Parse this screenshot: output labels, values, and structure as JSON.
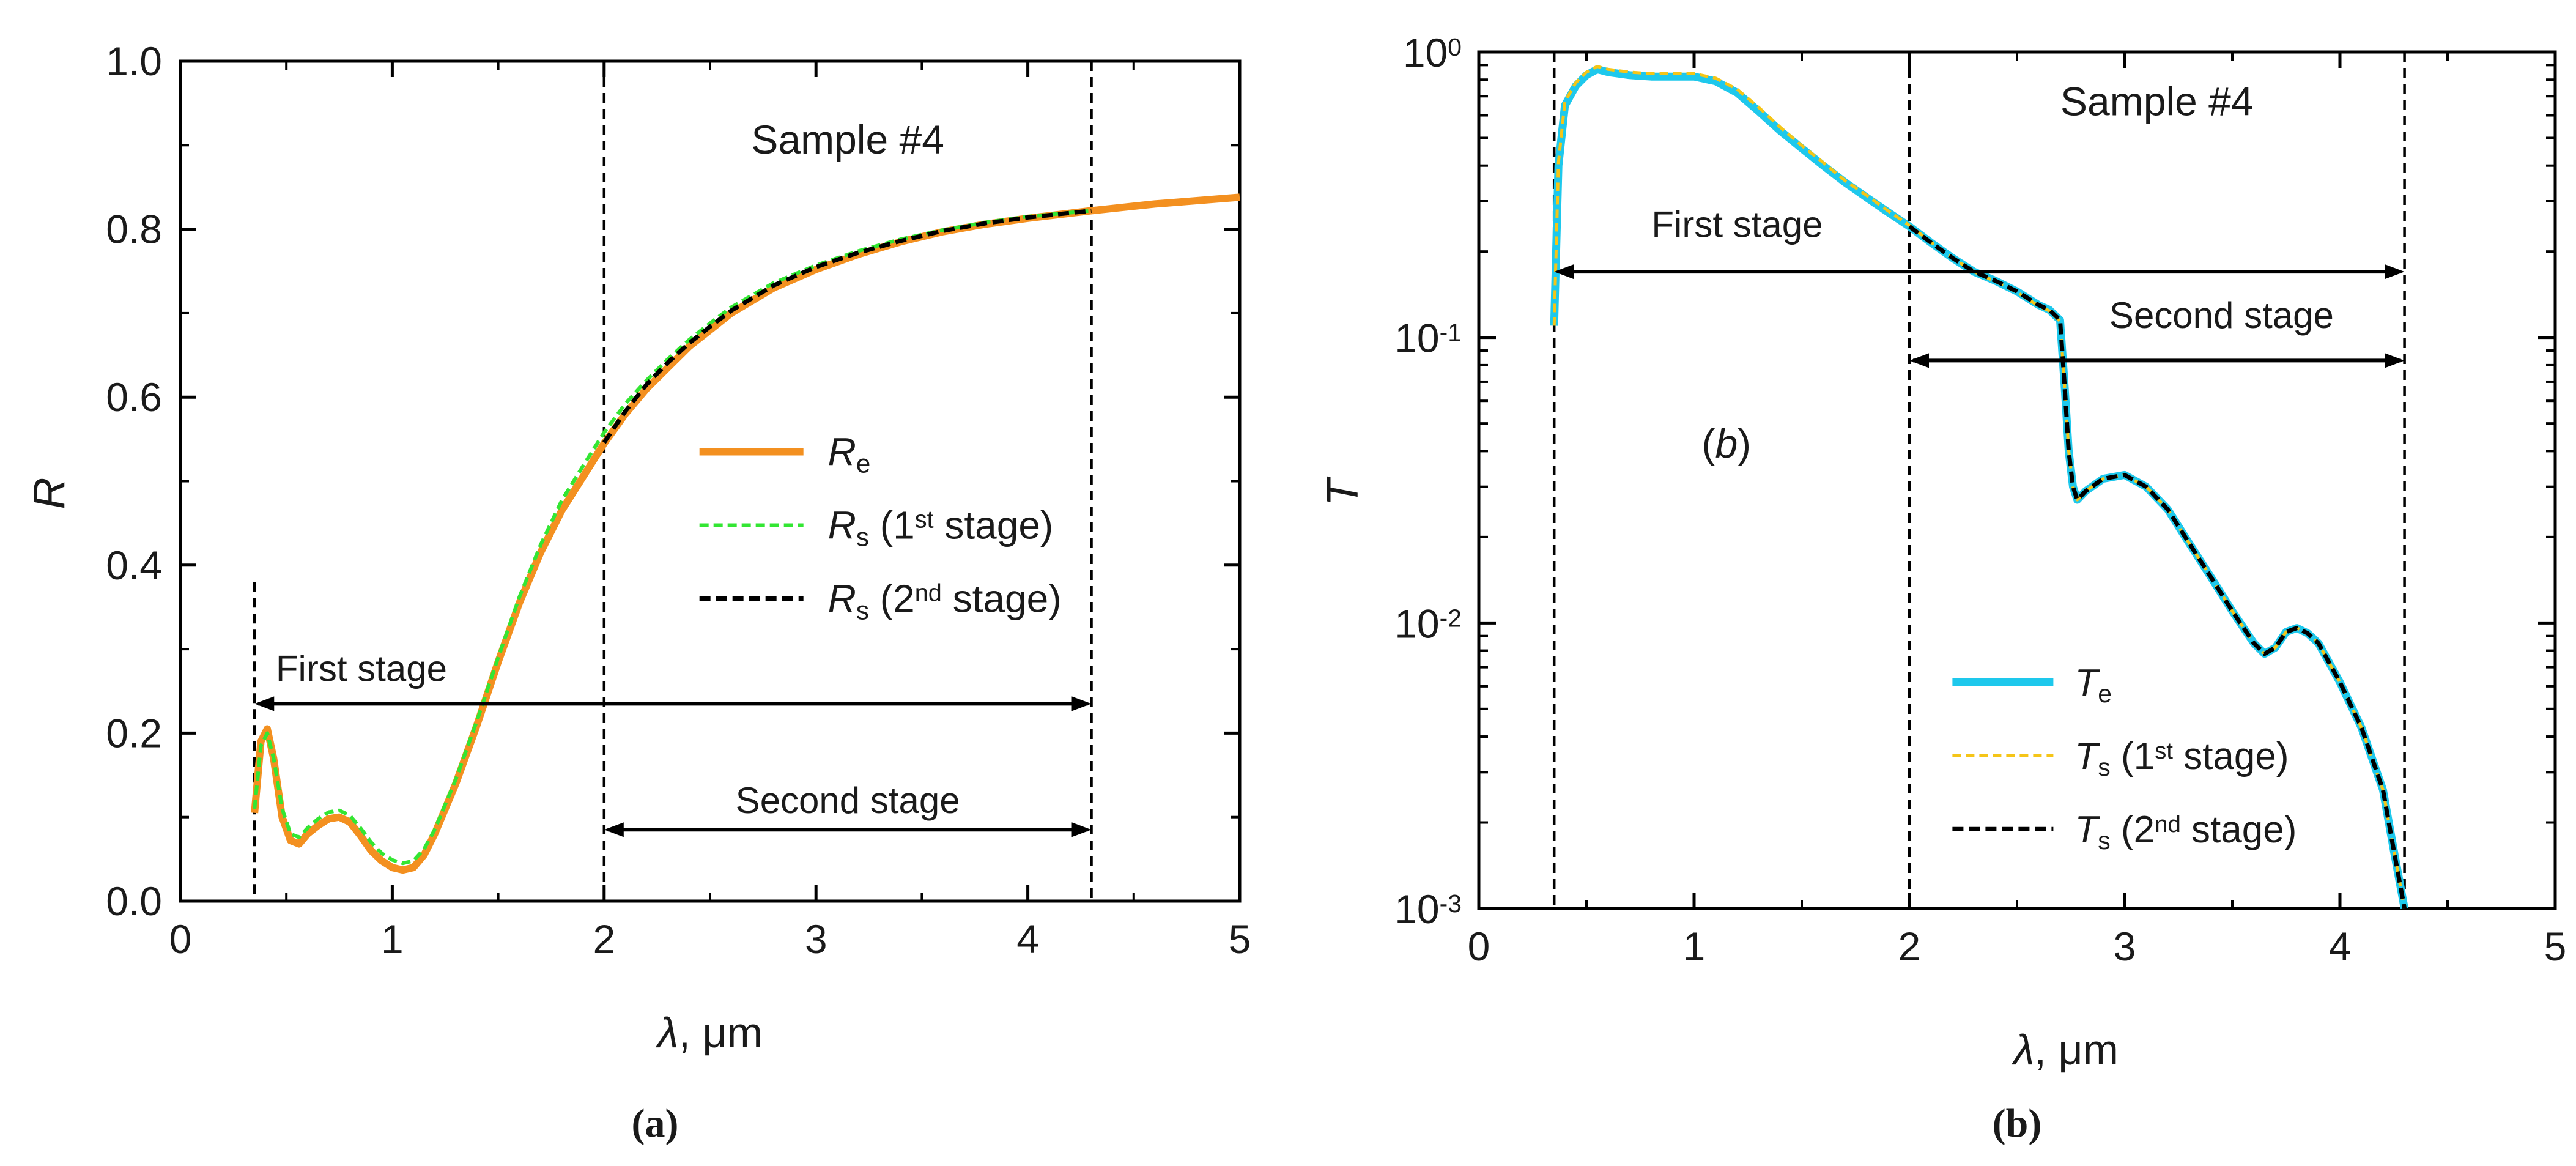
{
  "chart_data": [
    {
      "type": "line",
      "panel_caption": "(a)",
      "title": "Sample #4",
      "xlabel": "λ, μm",
      "ylabel": "R",
      "xlim": [
        0,
        5
      ],
      "ylim": [
        0,
        1.0
      ],
      "xticks": [
        "0",
        "1",
        "2",
        "3",
        "4",
        "5"
      ],
      "yticks": [
        "0.0",
        "0.2",
        "0.4",
        "0.6",
        "0.8",
        "1.0"
      ],
      "legend": [
        "Re",
        "Rs (1st stage)",
        "Rs (2nd stage)"
      ],
      "annotations": {
        "first_stage": "First stage",
        "second_stage": "Second stage"
      },
      "series": [
        {
          "name": "Re",
          "color": "#f39020",
          "x": [
            0.35,
            0.38,
            0.41,
            0.44,
            0.48,
            0.52,
            0.56,
            0.6,
            0.65,
            0.7,
            0.75,
            0.8,
            0.85,
            0.9,
            0.95,
            1.0,
            1.05,
            1.1,
            1.15,
            1.2,
            1.3,
            1.4,
            1.5,
            1.6,
            1.7,
            1.8,
            1.9,
            2.0,
            2.1,
            2.2,
            2.3,
            2.4,
            2.5,
            2.6,
            2.8,
            3.0,
            3.2,
            3.4,
            3.6,
            3.8,
            4.0,
            4.3,
            4.6,
            5.0
          ],
          "y": [
            0.105,
            0.19,
            0.205,
            0.17,
            0.1,
            0.072,
            0.068,
            0.08,
            0.09,
            0.098,
            0.1,
            0.094,
            0.078,
            0.06,
            0.048,
            0.04,
            0.037,
            0.04,
            0.055,
            0.08,
            0.14,
            0.21,
            0.285,
            0.355,
            0.415,
            0.465,
            0.505,
            0.545,
            0.58,
            0.61,
            0.635,
            0.66,
            0.68,
            0.7,
            0.73,
            0.752,
            0.77,
            0.785,
            0.797,
            0.806,
            0.813,
            0.822,
            0.83,
            0.838
          ]
        },
        {
          "name": "Rs (1st stage)",
          "color": "#33e633",
          "x": [
            0.35,
            0.38,
            0.41,
            0.44,
            0.48,
            0.52,
            0.56,
            0.6,
            0.65,
            0.7,
            0.75,
            0.8,
            0.85,
            0.9,
            0.95,
            1.0,
            1.05,
            1.1,
            1.15,
            1.2,
            1.3,
            1.4,
            1.5,
            1.6,
            1.7,
            1.8,
            1.9,
            2.0,
            2.1,
            2.2,
            2.3,
            2.4,
            2.5,
            2.6,
            2.8,
            3.0,
            3.2,
            3.4,
            3.6,
            3.8,
            4.0,
            4.3
          ],
          "y": [
            0.11,
            0.185,
            0.2,
            0.17,
            0.11,
            0.08,
            0.076,
            0.087,
            0.098,
            0.106,
            0.108,
            0.102,
            0.087,
            0.07,
            0.057,
            0.049,
            0.045,
            0.048,
            0.062,
            0.085,
            0.145,
            0.215,
            0.29,
            0.362,
            0.424,
            0.477,
            0.518,
            0.558,
            0.592,
            0.62,
            0.645,
            0.668,
            0.688,
            0.707,
            0.736,
            0.757,
            0.774,
            0.788,
            0.799,
            0.808,
            0.815,
            0.822
          ]
        },
        {
          "name": "Rs (2nd stage)",
          "color": "#000000",
          "x": [
            2.0,
            2.1,
            2.2,
            2.3,
            2.4,
            2.5,
            2.6,
            2.8,
            3.0,
            3.2,
            3.4,
            3.6,
            3.8,
            4.0,
            4.3
          ],
          "y": [
            0.546,
            0.583,
            0.615,
            0.641,
            0.664,
            0.684,
            0.703,
            0.733,
            0.755,
            0.772,
            0.786,
            0.798,
            0.807,
            0.814,
            0.822
          ]
        }
      ]
    },
    {
      "type": "line",
      "panel_caption": "(b)",
      "title": "Sample #4",
      "inner_label": "(b)",
      "xlabel": "λ, μm",
      "ylabel": "T",
      "yscale": "log",
      "xlim": [
        0,
        5
      ],
      "ylim": [
        0.001,
        1.0
      ],
      "xticks": [
        "0",
        "1",
        "2",
        "3",
        "4",
        "5"
      ],
      "yticks": [
        {
          "base": "10",
          "exp": "0"
        },
        {
          "base": "10",
          "exp": "-1"
        },
        {
          "base": "10",
          "exp": "-2"
        },
        {
          "base": "10",
          "exp": "-3"
        }
      ],
      "legend": [
        "Te",
        "Ts (1st stage)",
        "Ts (2nd stage)"
      ],
      "annotations": {
        "first_stage": "First stage",
        "second_stage": "Second stage"
      },
      "series": [
        {
          "name": "Te",
          "color": "#1ec8ec",
          "x": [
            0.35,
            0.37,
            0.4,
            0.45,
            0.5,
            0.55,
            0.6,
            0.7,
            0.8,
            0.9,
            1.0,
            1.1,
            1.2,
            1.3,
            1.4,
            1.5,
            1.6,
            1.7,
            1.8,
            1.9,
            2.0,
            2.1,
            2.2,
            2.3,
            2.4,
            2.5,
            2.6,
            2.65,
            2.7,
            2.72,
            2.74,
            2.76,
            2.78,
            2.82,
            2.9,
            3.0,
            3.1,
            3.2,
            3.3,
            3.4,
            3.5,
            3.6,
            3.65,
            3.7,
            3.75,
            3.8,
            3.85,
            3.9,
            4.0,
            4.1,
            4.2,
            4.25,
            4.3
          ],
          "y": [
            0.11,
            0.4,
            0.65,
            0.76,
            0.83,
            0.87,
            0.85,
            0.83,
            0.82,
            0.82,
            0.82,
            0.79,
            0.72,
            0.62,
            0.53,
            0.46,
            0.4,
            0.35,
            0.31,
            0.275,
            0.245,
            0.215,
            0.19,
            0.17,
            0.158,
            0.145,
            0.13,
            0.125,
            0.115,
            0.07,
            0.04,
            0.03,
            0.027,
            0.029,
            0.032,
            0.033,
            0.03,
            0.025,
            0.019,
            0.0145,
            0.011,
            0.0085,
            0.0078,
            0.0082,
            0.0093,
            0.0096,
            0.0092,
            0.0085,
            0.0062,
            0.0043,
            0.0026,
            0.0016,
            0.001
          ]
        },
        {
          "name": "Ts (1st stage)",
          "color": "#f5c518",
          "x": [
            0.35,
            0.37,
            0.4,
            0.45,
            0.5,
            0.55,
            0.6,
            0.7,
            0.8,
            0.9,
            1.0,
            1.1,
            1.2,
            1.3,
            1.4,
            1.5,
            1.6,
            1.7,
            1.8,
            1.9,
            2.0,
            2.1,
            2.2,
            2.3,
            2.4,
            2.5,
            2.6,
            2.65,
            2.7,
            2.72,
            2.74,
            2.76,
            2.78,
            2.82,
            2.9,
            3.0,
            3.1,
            3.2,
            3.3,
            3.4,
            3.5,
            3.6,
            3.65,
            3.7,
            3.75,
            3.8,
            3.85,
            3.9,
            4.0,
            4.1,
            4.2,
            4.25,
            4.3
          ],
          "y": [
            0.11,
            0.41,
            0.67,
            0.78,
            0.85,
            0.89,
            0.87,
            0.85,
            0.84,
            0.84,
            0.84,
            0.81,
            0.74,
            0.64,
            0.545,
            0.47,
            0.41,
            0.355,
            0.315,
            0.278,
            0.247,
            0.216,
            0.19,
            0.17,
            0.157,
            0.144,
            0.129,
            0.124,
            0.114,
            0.07,
            0.04,
            0.03,
            0.027,
            0.029,
            0.032,
            0.033,
            0.03,
            0.025,
            0.019,
            0.0145,
            0.011,
            0.0085,
            0.0078,
            0.0082,
            0.0093,
            0.0096,
            0.0092,
            0.0085,
            0.0062,
            0.0043,
            0.0026,
            0.0016,
            0.001
          ]
        },
        {
          "name": "Ts (2nd stage)",
          "color": "#000000",
          "x": [
            2.0,
            2.1,
            2.2,
            2.3,
            2.4,
            2.5,
            2.6,
            2.65,
            2.7,
            2.72,
            2.74,
            2.76,
            2.78,
            2.82,
            2.9,
            3.0,
            3.1,
            3.2,
            3.3,
            3.4,
            3.5,
            3.6,
            3.65,
            3.7,
            3.75,
            3.8,
            3.85,
            3.9,
            4.0,
            4.1,
            4.2,
            4.25,
            4.3
          ],
          "y": [
            0.245,
            0.215,
            0.19,
            0.17,
            0.158,
            0.145,
            0.13,
            0.125,
            0.115,
            0.07,
            0.04,
            0.03,
            0.027,
            0.029,
            0.032,
            0.033,
            0.03,
            0.025,
            0.019,
            0.0145,
            0.011,
            0.0085,
            0.0078,
            0.0082,
            0.0093,
            0.0096,
            0.0092,
            0.0085,
            0.0062,
            0.0043,
            0.0026,
            0.0016,
            0.001
          ]
        }
      ]
    }
  ]
}
